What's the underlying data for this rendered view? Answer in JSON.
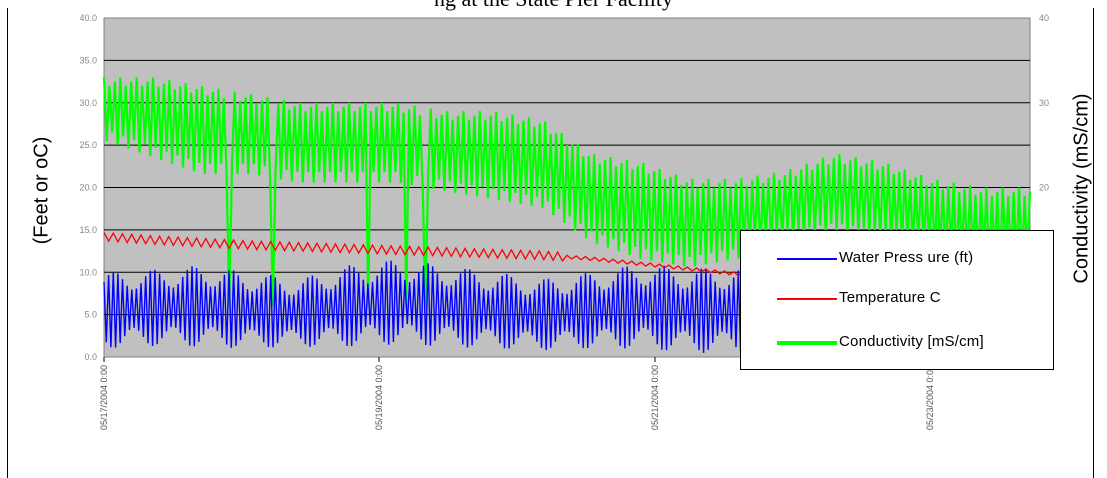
{
  "chart_data": {
    "type": "line",
    "title": "ng at the State Pier Facility",
    "ylabel_left": "(Feet or oC)",
    "ylabel_right": "Conductivity (mS/cm)",
    "ylim_left": [
      0,
      40
    ],
    "ylim_right": [
      0,
      40
    ],
    "left_ticks": [
      "0.0",
      "5.0",
      "10.0",
      "15.0",
      "20.0",
      "25.0",
      "30.0",
      "35.0",
      "40.0"
    ],
    "right_ticks": [
      "0",
      "10",
      "20",
      "30",
      "40"
    ],
    "x_tick_labels": [
      "05/17/2004 0:00",
      "05/19/2004 0:00",
      "05/21/2004 0:00",
      "05/23/2004 0:00"
    ],
    "grid": "horizontal",
    "legend_position": "bottom-right",
    "series": [
      {
        "name": "Water Press ure (ft)",
        "color": "#0000ff",
        "axis": "left",
        "baseline": [
          5.5,
          5.8,
          6.0,
          5.5,
          5.2,
          6.0,
          6.5,
          6.0,
          5.5,
          5.0,
          5.5,
          6.0,
          5.5,
          5.5,
          6.5,
          7.0,
          6.5,
          5.5,
          5.5,
          6.0
        ],
        "amplitude": [
          4.5,
          4.5,
          4.8,
          4.5,
          4.0,
          4.8,
          5.0,
          4.8,
          4.5,
          4.2,
          4.5,
          5.0,
          5.0,
          5.0,
          5.5,
          5.5,
          5.2,
          4.5,
          4.5,
          4.8
        ]
      },
      {
        "name": "Temperature C",
        "color": "#ff0000",
        "axis": "left",
        "values": [
          14.2,
          13.8,
          13.5,
          13.2,
          13.0,
          12.8,
          12.6,
          12.4,
          12.2,
          12.0,
          11.6,
          11.0,
          10.4,
          9.8,
          9.4,
          9.0,
          8.8,
          8.8,
          8.8,
          8.8
        ]
      },
      {
        "name": "Conductivity [mS/cm]",
        "color": "#00ff00",
        "axis": "right",
        "top_envelope": [
          33,
          33,
          32,
          31,
          30,
          30,
          30,
          29,
          29,
          28,
          24,
          23,
          21,
          21,
          22,
          24,
          23,
          21,
          20,
          20
        ],
        "bottom_envelope": [
          25,
          23,
          21,
          21,
          20,
          20,
          20,
          19,
          18,
          17,
          13,
          11,
          10,
          11,
          13,
          14,
          13,
          11,
          10,
          10
        ]
      }
    ]
  }
}
